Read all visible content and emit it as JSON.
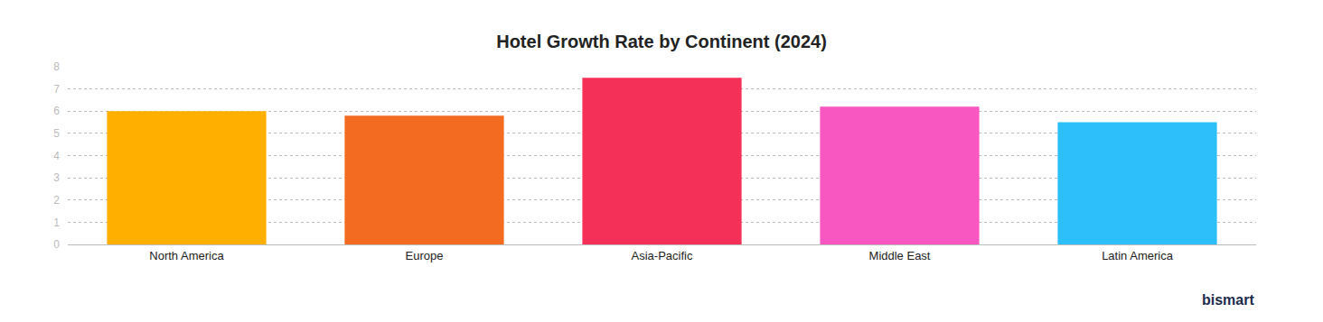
{
  "chart_data": {
    "type": "bar",
    "title": "Hotel Growth Rate by Continent (2024)",
    "categories": [
      "North America",
      "Europe",
      "Asia-Pacific",
      "Middle East",
      "Latin America"
    ],
    "values": [
      6.0,
      5.8,
      7.5,
      6.2,
      5.5
    ],
    "colors": [
      "#ffaf00",
      "#f26b21",
      "#f43058",
      "#f857c1",
      "#2cbffa"
    ],
    "ylim": [
      0,
      8
    ],
    "yticks": [
      0,
      1,
      2,
      3,
      4,
      5,
      6,
      7,
      8
    ],
    "grid": true,
    "annotations": [
      "bismart"
    ]
  }
}
